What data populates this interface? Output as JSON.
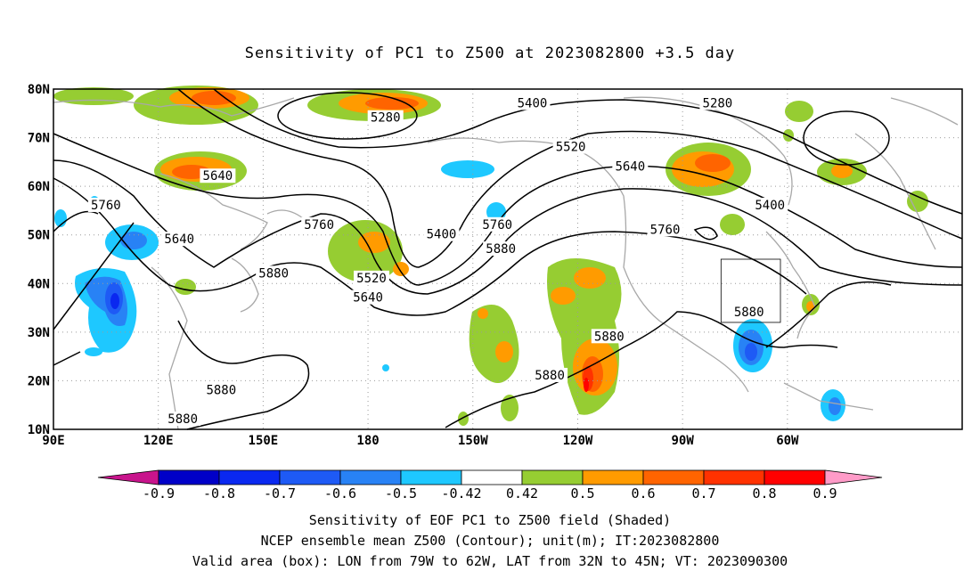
{
  "title": "Sensitivity of PC1 to Z500 at 2023082800 +3.5 day",
  "map": {
    "lat_labels": [
      "80N",
      "70N",
      "60N",
      "50N",
      "40N",
      "30N",
      "20N",
      "10N"
    ],
    "lon_labels": [
      "90E",
      "120E",
      "150E",
      "180",
      "150W",
      "120W",
      "90W",
      "60W"
    ],
    "contour_labels": [
      {
        "text": "5280",
        "lon": -175,
        "lat": 74
      },
      {
        "text": "5280",
        "lon": -80,
        "lat": 77
      },
      {
        "text": "5400",
        "lon": -133,
        "lat": 77
      },
      {
        "text": "5400",
        "lon": -159,
        "lat": 50
      },
      {
        "text": "5400",
        "lon": -65,
        "lat": 56
      },
      {
        "text": "5520",
        "lon": -122,
        "lat": 68
      },
      {
        "text": "5520",
        "lon": -179,
        "lat": 41
      },
      {
        "text": "5640",
        "lon": 137,
        "lat": 62
      },
      {
        "text": "5640",
        "lon": 126,
        "lat": 49
      },
      {
        "text": "5640",
        "lon": -180,
        "lat": 37
      },
      {
        "text": "5640",
        "lon": -105,
        "lat": 64
      },
      {
        "text": "5760",
        "lon": 105,
        "lat": 56
      },
      {
        "text": "5760",
        "lon": 166,
        "lat": 52
      },
      {
        "text": "5760",
        "lon": -143,
        "lat": 52
      },
      {
        "text": "5760",
        "lon": -95,
        "lat": 51
      },
      {
        "text": "5880",
        "lon": 153,
        "lat": 42
      },
      {
        "text": "5880",
        "lon": -142,
        "lat": 47
      },
      {
        "text": "5880",
        "lon": -111,
        "lat": 29
      },
      {
        "text": "5880",
        "lon": -128,
        "lat": 21
      },
      {
        "text": "5880",
        "lon": -71,
        "lat": 34
      },
      {
        "text": "5880",
        "lon": 138,
        "lat": 18
      },
      {
        "text": "5880",
        "lon": 127,
        "lat": 12
      }
    ],
    "valid_box": {
      "lon_min": -79,
      "lon_max": -62,
      "lat_min": 32,
      "lat_max": 45
    }
  },
  "colorbar": {
    "tick_labels": [
      "-0.9",
      "-0.8",
      "-0.7",
      "-0.6",
      "-0.5",
      "-0.42",
      "0.42",
      "0.5",
      "0.6",
      "0.7",
      "0.8",
      "0.9"
    ],
    "colors": [
      "#0000c8",
      "#0a28f0",
      "#1e5af5",
      "#2882f5",
      "#1ec8ff",
      "#ffffff",
      "#96cd32",
      "#ff9b00",
      "#ff6400",
      "#ff3200",
      "#ff0000"
    ],
    "low_end_color": "#c8148c",
    "high_end_color": "#ff9bc8"
  },
  "footer": {
    "line1": "Sensitivity of EOF PC1 to Z500 field (Shaded)",
    "line2": "NCEP ensemble mean Z500 (Contour); unit(m); IT:2023082800",
    "line3": "Valid area (box): LON from 79W to 62W, LAT from 32N to 45N; VT: 2023090300"
  }
}
